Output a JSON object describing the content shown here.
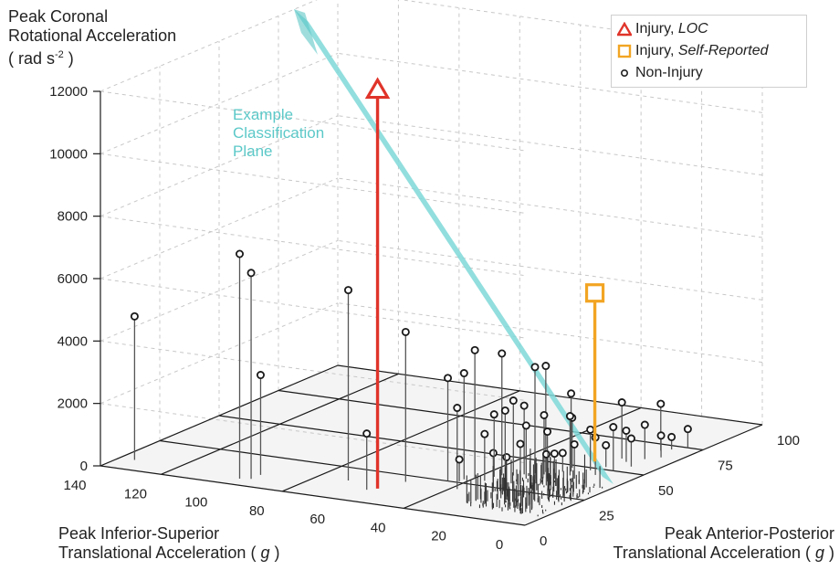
{
  "chart_data": {
    "type": "scatter",
    "title": "",
    "zlabel": [
      "Peak Coronal",
      "Rotational Acceleration",
      "( rad s",
      "-2",
      " )"
    ],
    "xlabel": [
      "Peak Anterior-Posterior",
      "Translational Acceleration  ( ",
      "g",
      " )"
    ],
    "ylabel": [
      "Peak Inferior-Superior",
      "Translational Acceleration  ( ",
      "g",
      " )"
    ],
    "xlim": [
      0,
      100
    ],
    "ylim": [
      0,
      140
    ],
    "zlim": [
      0,
      12000
    ],
    "x_ticks": [
      "0",
      "25",
      "50",
      "75",
      "100"
    ],
    "y_ticks": [
      "0",
      "20",
      "40",
      "60",
      "80",
      "100",
      "120",
      "140"
    ],
    "z_ticks": [
      "0",
      "2000",
      "4000",
      "6000",
      "8000",
      "10000",
      "12000"
    ],
    "grid": true,
    "legend_position": "top-right",
    "legend": [
      {
        "symbol": "triangle",
        "color": "#e0342a",
        "label": "Injury, ",
        "label_italic": "LOC"
      },
      {
        "symbol": "square",
        "color": "#f2a523",
        "label": "Injury, ",
        "label_italic": "Self-Reported"
      },
      {
        "symbol": "circle",
        "color": "#222222",
        "label": "Non-Injury",
        "label_italic": ""
      }
    ],
    "annotation": [
      "Example",
      "Classification",
      "Plane"
    ],
    "plane_color": "#7fd8d8",
    "series": [
      {
        "name": "Injury, LOC",
        "points": [
          {
            "x": 12,
            "y": 58,
            "z": 12800
          }
        ]
      },
      {
        "name": "Injury, Self-Reported",
        "points": [
          {
            "x": 55,
            "y": 20,
            "z": 5400
          }
        ]
      },
      {
        "name": "Non-Injury",
        "points": [
          {
            "x": 8,
            "y": 135,
            "z": 4600
          },
          {
            "x": 5,
            "y": 98,
            "z": 7200
          },
          {
            "x": 6,
            "y": 95,
            "z": 6600
          },
          {
            "x": 10,
            "y": 95,
            "z": 3200
          },
          {
            "x": 15,
            "y": 70,
            "z": 6100
          },
          {
            "x": 20,
            "y": 55,
            "z": 4800
          },
          {
            "x": 10,
            "y": 60,
            "z": 1800
          },
          {
            "x": 30,
            "y": 40,
            "z": 4100
          },
          {
            "x": 25,
            "y": 45,
            "z": 3300
          },
          {
            "x": 35,
            "y": 35,
            "z": 3900
          },
          {
            "x": 28,
            "y": 42,
            "z": 3400
          },
          {
            "x": 40,
            "y": 28,
            "z": 3400
          },
          {
            "x": 42,
            "y": 26,
            "z": 3400
          },
          {
            "x": 20,
            "y": 38,
            "z": 2600
          },
          {
            "x": 38,
            "y": 30,
            "z": 2200
          },
          {
            "x": 40,
            "y": 25,
            "z": 1900
          },
          {
            "x": 45,
            "y": 20,
            "z": 2500
          },
          {
            "x": 48,
            "y": 22,
            "z": 1600
          },
          {
            "x": 60,
            "y": 15,
            "z": 1800
          },
          {
            "x": 70,
            "y": 10,
            "z": 1500
          },
          {
            "x": 55,
            "y": 8,
            "z": 900
          },
          {
            "x": 65,
            "y": 6,
            "z": 700
          },
          {
            "x": 75,
            "y": 5,
            "z": 600
          },
          {
            "x": 72,
            "y": 8,
            "z": 400
          },
          {
            "x": 35,
            "y": 20,
            "z": 1600
          },
          {
            "x": 30,
            "y": 25,
            "z": 1300
          },
          {
            "x": 25,
            "y": 30,
            "z": 1100
          },
          {
            "x": 32,
            "y": 18,
            "z": 1000
          },
          {
            "x": 28,
            "y": 28,
            "z": 900
          },
          {
            "x": 40,
            "y": 15,
            "z": 1100
          },
          {
            "x": 38,
            "y": 20,
            "z": 800
          },
          {
            "x": 45,
            "y": 12,
            "z": 1200
          },
          {
            "x": 50,
            "y": 10,
            "z": 1400
          },
          {
            "x": 52,
            "y": 14,
            "z": 700
          },
          {
            "x": 30,
            "y": 30,
            "z": 2300
          },
          {
            "x": 35,
            "y": 27,
            "z": 1700
          },
          {
            "x": 42,
            "y": 18,
            "z": 1900
          },
          {
            "x": 36,
            "y": 32,
            "z": 2400
          },
          {
            "x": 33,
            "y": 36,
            "z": 2000
          },
          {
            "x": 29,
            "y": 36,
            "z": 1500
          },
          {
            "x": 48,
            "y": 16,
            "z": 1300
          },
          {
            "x": 58,
            "y": 12,
            "z": 1000
          },
          {
            "x": 62,
            "y": 9,
            "z": 1100
          },
          {
            "x": 26,
            "y": 42,
            "z": 700
          },
          {
            "x": 44,
            "y": 22,
            "z": 600
          }
        ]
      }
    ]
  }
}
